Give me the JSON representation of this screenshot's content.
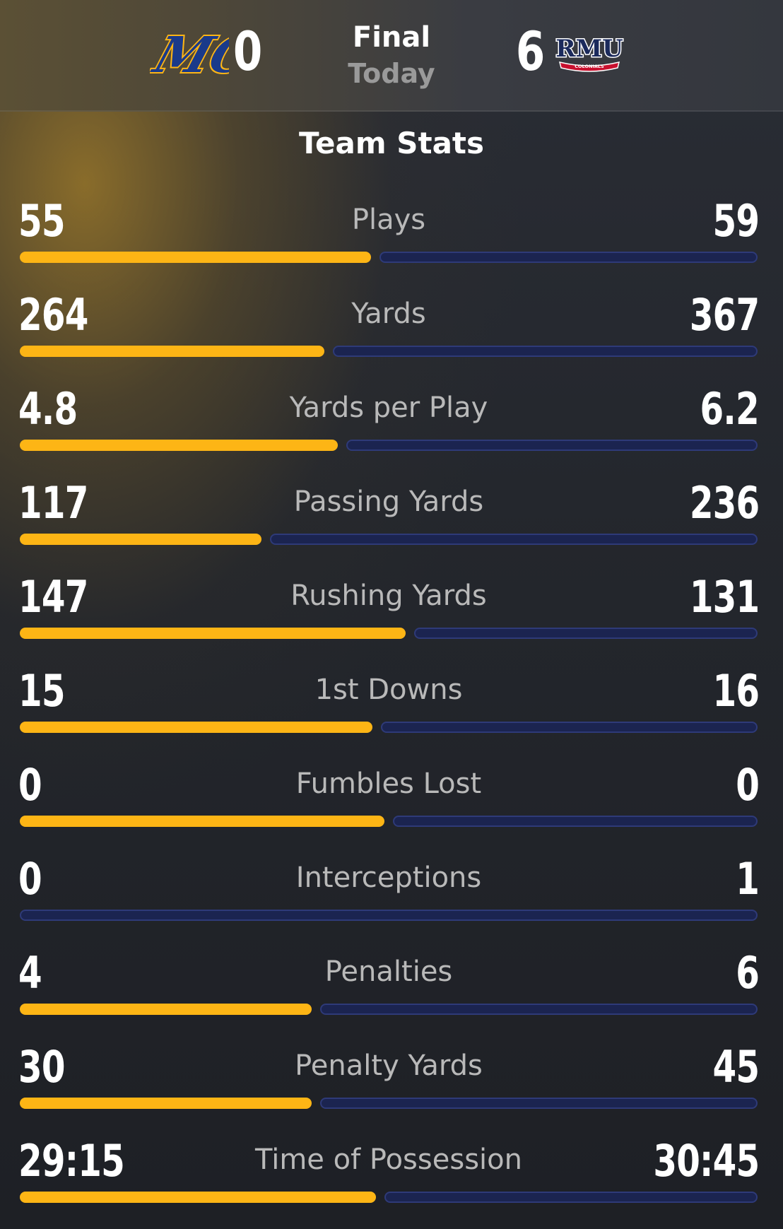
{
  "game": {
    "away_team_abbr": "MC",
    "away_score": "0",
    "status": "Final",
    "date": "Today",
    "home_score": "6",
    "home_team_abbr": "RMU",
    "home_team_subtext": "COLONIALS"
  },
  "colors": {
    "away_accent": "#fdb515",
    "home_accent": "#1b2450",
    "home_bar_border": "#2e3a78",
    "label_gray": "#b9b9b9"
  },
  "section_title": "Team Stats",
  "stats": [
    {
      "label": "Plays",
      "away": "55",
      "home": "59",
      "away_share": 0.482
    },
    {
      "label": "Yards",
      "away": "264",
      "home": "367",
      "away_share": 0.418
    },
    {
      "label": "Yards per Play",
      "away": "4.8",
      "home": "6.2",
      "away_share": 0.436
    },
    {
      "label": "Passing Yards",
      "away": "117",
      "home": "236",
      "away_share": 0.331
    },
    {
      "label": "Rushing Yards",
      "away": "147",
      "home": "131",
      "away_share": 0.529
    },
    {
      "label": "1st Downs",
      "away": "15",
      "home": "16",
      "away_share": 0.484
    },
    {
      "label": "Fumbles Lost",
      "away": "0",
      "home": "0",
      "away_share": 0.5
    },
    {
      "label": "Interceptions",
      "away": "0",
      "home": "1",
      "away_share": 0.0
    },
    {
      "label": "Penalties",
      "away": "4",
      "home": "6",
      "away_share": 0.4
    },
    {
      "label": "Penalty Yards",
      "away": "30",
      "home": "45",
      "away_share": 0.4
    },
    {
      "label": "Time of Possession",
      "away": "29:15",
      "home": "30:45",
      "away_share": 0.488
    }
  ]
}
